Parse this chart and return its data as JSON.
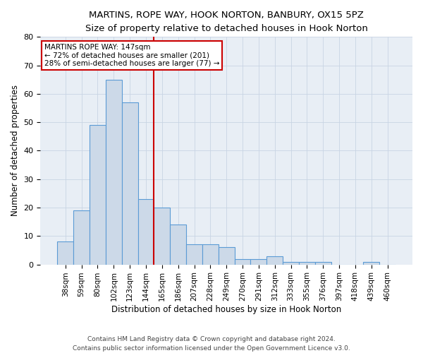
{
  "title1": "MARTINS, ROPE WAY, HOOK NORTON, BANBURY, OX15 5PZ",
  "title2": "Size of property relative to detached houses in Hook Norton",
  "xlabel": "Distribution of detached houses by size in Hook Norton",
  "ylabel": "Number of detached properties",
  "categories": [
    "38sqm",
    "59sqm",
    "80sqm",
    "102sqm",
    "123sqm",
    "144sqm",
    "165sqm",
    "186sqm",
    "207sqm",
    "228sqm",
    "249sqm",
    "270sqm",
    "291sqm",
    "312sqm",
    "333sqm",
    "355sqm",
    "376sqm",
    "397sqm",
    "418sqm",
    "439sqm",
    "460sqm"
  ],
  "values": [
    8,
    19,
    49,
    65,
    57,
    23,
    20,
    14,
    7,
    7,
    6,
    2,
    2,
    3,
    1,
    1,
    1,
    0,
    0,
    1,
    0
  ],
  "bar_color": "#ccd9e8",
  "bar_edge_color": "#5b9bd5",
  "bar_edge_width": 0.8,
  "vline_color": "#cc0000",
  "vline_x": 5.5,
  "annotation_line1": "MARTINS ROPE WAY: 147sqm",
  "annotation_line2": "← 72% of detached houses are smaller (201)",
  "annotation_line3": "28% of semi-detached houses are larger (77) →",
  "annotation_box_color": "#ffffff",
  "annotation_box_edge_color": "#cc0000",
  "ylim": [
    0,
    80
  ],
  "yticks": [
    0,
    10,
    20,
    30,
    40,
    50,
    60,
    70,
    80
  ],
  "grid_color": "#c8d4e4",
  "background_color": "#e8eef5",
  "footer1": "Contains HM Land Registry data © Crown copyright and database right 2024.",
  "footer2": "Contains public sector information licensed under the Open Government Licence v3.0.",
  "title_fontsize": 9.5,
  "subtitle_fontsize": 9,
  "axis_label_fontsize": 8.5,
  "tick_fontsize": 7.5,
  "annotation_fontsize": 7.5,
  "footer_fontsize": 6.5
}
